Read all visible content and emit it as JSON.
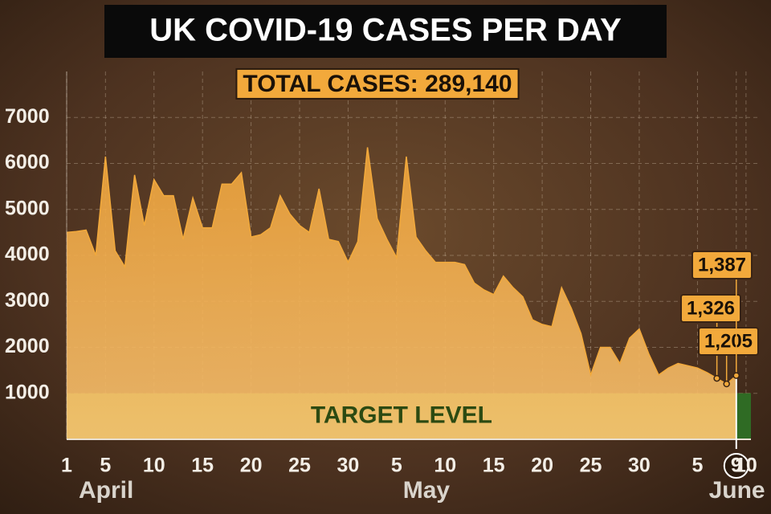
{
  "chart_data": {
    "type": "area",
    "title": "UK COVID-19 CASES PER DAY",
    "total_label": "TOTAL CASES:  289,140",
    "x": [
      1,
      2,
      3,
      4,
      5,
      6,
      7,
      8,
      9,
      10,
      11,
      12,
      13,
      14,
      15,
      16,
      17,
      18,
      19,
      20,
      21,
      22,
      23,
      24,
      25,
      26,
      27,
      28,
      29,
      30,
      31,
      32,
      33,
      34,
      35,
      36,
      37,
      38,
      39,
      40,
      41,
      42,
      43,
      44,
      45,
      46,
      47,
      48,
      49,
      50,
      51,
      52,
      53,
      54,
      55,
      56,
      57,
      58,
      59,
      60,
      61,
      62,
      63,
      64,
      65,
      66,
      67,
      68,
      69,
      70
    ],
    "series": [
      {
        "name": "Cases per day",
        "color": "#f2a93b",
        "values": [
          4500,
          4520,
          4550,
          4000,
          6150,
          4100,
          3750,
          5750,
          4650,
          5650,
          5300,
          5300,
          4350,
          5250,
          4600,
          4600,
          5550,
          5550,
          5800,
          4400,
          4450,
          4600,
          5300,
          4900,
          4650,
          4500,
          5450,
          4350,
          4300,
          3850,
          4300,
          6350,
          4800,
          4350,
          3950,
          6150,
          4400,
          4100,
          3850,
          3850,
          3850,
          3800,
          3400,
          3250,
          3150,
          3550,
          3300,
          3100,
          2600,
          2500,
          2450,
          3300,
          2850,
          2300,
          1400,
          2000,
          2000,
          1650,
          2200,
          2400,
          1850,
          1400,
          1550,
          1650,
          1600,
          1550,
          1450,
          1326,
          1205,
          1387
        ]
      }
    ],
    "annotations": [
      {
        "x": 68,
        "y": 1326,
        "label": "1,326"
      },
      {
        "x": 69,
        "y": 1205,
        "label": "1,205"
      },
      {
        "x": 70,
        "y": 1387,
        "label": "1,387"
      }
    ],
    "target": {
      "label": "TARGET LEVEL",
      "value": 1000
    },
    "marker": {
      "x": 70
    },
    "months": [
      {
        "label": "April",
        "x": 3
      },
      {
        "label": "May",
        "x": 36
      },
      {
        "label": "June",
        "x": 68
      }
    ],
    "xlim": [
      1,
      72.5
    ],
    "xticks": [
      1,
      5,
      10,
      15,
      20,
      25,
      30,
      {
        "value": 35,
        "label": "5"
      },
      {
        "value": 40,
        "label": "10"
      },
      {
        "value": 45,
        "label": "15"
      },
      {
        "value": 50,
        "label": "20"
      },
      {
        "value": 55,
        "label": "25"
      },
      {
        "value": 60,
        "label": "30"
      },
      {
        "value": 66,
        "label": "5"
      },
      {
        "value": 70,
        "label": "9"
      },
      {
        "value": 71,
        "label": "10"
      }
    ],
    "ylim": [
      0,
      8000
    ],
    "yticks": [
      1000,
      2000,
      3000,
      4000,
      5000,
      6000,
      7000
    ],
    "grid": true
  }
}
